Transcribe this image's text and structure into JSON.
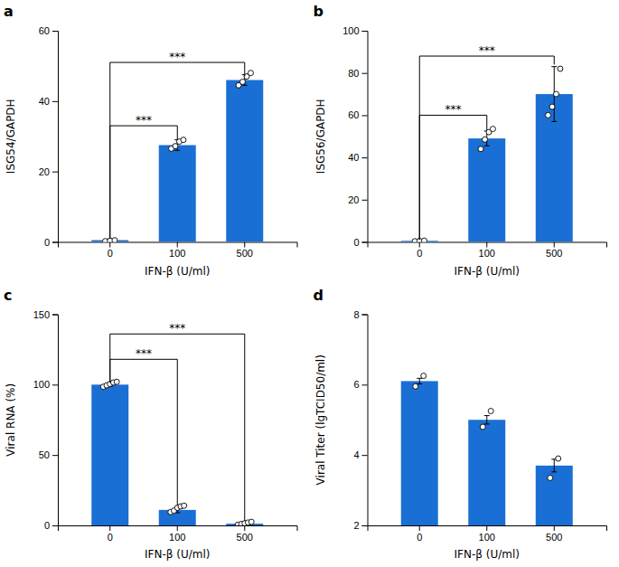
{
  "chart_data": [
    {
      "type": "bar",
      "title": "a",
      "ylabel": "ISG54/GAPDH",
      "xlabel": "IFN-β (U/ml)",
      "categories": [
        "0",
        "100",
        "500"
      ],
      "values": [
        0.5,
        27.5,
        46.0
      ],
      "color": "#1A6FD4",
      "errors": [
        0.3,
        1.5,
        1.5
      ],
      "points": [
        [
          0.2,
          0.35,
          0.45
        ],
        [
          26.5,
          27.2,
          28.5,
          29.0
        ],
        [
          44.5,
          45.5,
          47.0,
          48.0
        ]
      ],
      "brackets": [
        {
          "x1": "0",
          "x2": "100",
          "y": 33,
          "y_left": 1.0,
          "y_right": 29.0,
          "label": "***"
        },
        {
          "x1": "0",
          "x2": "500",
          "y": 51,
          "y_left": 1.0,
          "y_right": 47.0,
          "label": "***"
        }
      ],
      "ylim": [
        0,
        60
      ],
      "yticks": [
        0,
        20,
        40,
        60
      ]
    },
    {
      "type": "bar",
      "title": "b",
      "ylabel": "ISG56/GAPDH",
      "xlabel": "IFN-β (U/ml)",
      "categories": [
        "0",
        "100",
        "500"
      ],
      "values": [
        0.5,
        49.0,
        70.0
      ],
      "color": "#1A6FD4",
      "errors": [
        0.2,
        3.5,
        13.0
      ],
      "points": [
        [
          0.3,
          0.45,
          0.6
        ],
        [
          44.0,
          48.5,
          52.0,
          53.5
        ],
        [
          60.0,
          64.0,
          70.0,
          82.0
        ]
      ],
      "brackets": [
        {
          "x1": "0",
          "x2": "100",
          "y": 60,
          "y_left": 1.0,
          "y_right": 53.0,
          "label": "***"
        },
        {
          "x1": "0",
          "x2": "500",
          "y": 88,
          "y_left": 1.0,
          "y_right": 84.0,
          "label": "***"
        }
      ],
      "ylim": [
        0,
        100
      ],
      "yticks": [
        0,
        20,
        40,
        60,
        80,
        100
      ]
    },
    {
      "type": "bar",
      "title": "c",
      "ylabel": "Viral RNA (%)",
      "xlabel": "IFN-β (U/ml)",
      "categories": [
        "0",
        "100",
        "500"
      ],
      "values": [
        100.0,
        11.0,
        1.2
      ],
      "color": "#1A6FD4",
      "errors": [
        1.2,
        2.0,
        0.5
      ],
      "points": [
        [
          98.5,
          99.5,
          100.5,
          101.5,
          102.0
        ],
        [
          9.5,
          10.5,
          12.5,
          13.5,
          14.0
        ],
        [
          0.5,
          1.0,
          1.5,
          2.0,
          2.5
        ]
      ],
      "brackets": [
        {
          "x1": "0",
          "x2": "100",
          "y": 118,
          "y_left": 101.5,
          "y_right": 14.5,
          "label": "***"
        },
        {
          "x1": "0",
          "x2": "500",
          "y": 136,
          "y_left": 101.5,
          "y_right": 3.0,
          "label": "***"
        }
      ],
      "ylim": [
        0,
        150
      ],
      "yticks": [
        0,
        50,
        100,
        150
      ]
    },
    {
      "type": "bar",
      "title": "d",
      "ylabel": "Viral Titer (lgTCID50/ml)",
      "xlabel": "IFN-β (U/ml)",
      "categories": [
        "0",
        "100",
        "500"
      ],
      "values": [
        6.1,
        5.0,
        3.7
      ],
      "color": "#1A6FD4",
      "errors": [
        0.08,
        0.12,
        0.18
      ],
      "points": [
        [
          5.95,
          6.25
        ],
        [
          4.8,
          5.25
        ],
        [
          3.35,
          3.9
        ]
      ],
      "ylim": [
        2,
        8
      ],
      "yticks": [
        2,
        4,
        6,
        8
      ]
    }
  ]
}
